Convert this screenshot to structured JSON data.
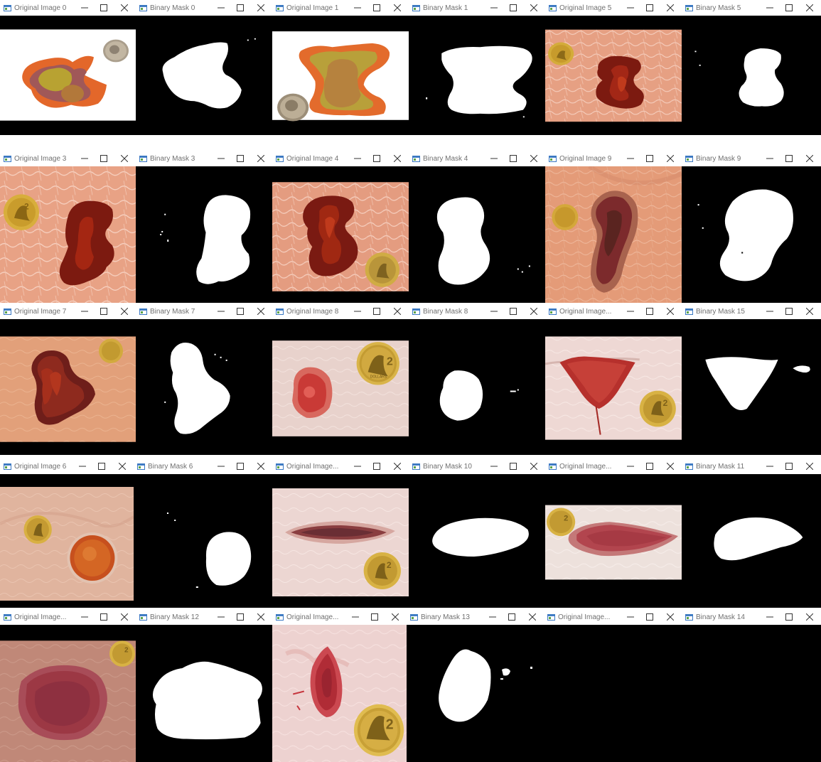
{
  "windows": [
    {
      "title": "Original Image 0",
      "kind": "original"
    },
    {
      "title": "Binary Mask 0",
      "kind": "mask"
    },
    {
      "title": "Original Image 1",
      "kind": "original"
    },
    {
      "title": "Binary Mask 1",
      "kind": "mask"
    },
    {
      "title": "Original Image 5",
      "kind": "original"
    },
    {
      "title": "Binary Mask 5",
      "kind": "mask"
    },
    {
      "title": "Original Image 3",
      "kind": "original"
    },
    {
      "title": "Binary Mask 3",
      "kind": "mask"
    },
    {
      "title": "Original Image 4",
      "kind": "original"
    },
    {
      "title": "Binary Mask 4",
      "kind": "mask"
    },
    {
      "title": "Original Image 9",
      "kind": "original"
    },
    {
      "title": "Binary Mask 9",
      "kind": "mask"
    },
    {
      "title": "Original Image 7",
      "kind": "original"
    },
    {
      "title": "Binary Mask 7",
      "kind": "mask"
    },
    {
      "title": "Original Image 8",
      "kind": "original"
    },
    {
      "title": "Binary Mask 8",
      "kind": "mask"
    },
    {
      "title": "Original Image...",
      "kind": "original"
    },
    {
      "title": "Binary Mask 15",
      "kind": "mask"
    },
    {
      "title": "Original Image 6",
      "kind": "original"
    },
    {
      "title": "Binary Mask 6",
      "kind": "mask"
    },
    {
      "title": "Original Image...",
      "kind": "original"
    },
    {
      "title": "Binary Mask 10",
      "kind": "mask"
    },
    {
      "title": "Original Image...",
      "kind": "original"
    },
    {
      "title": "Binary Mask 11",
      "kind": "mask"
    },
    {
      "title": "Original Image...",
      "kind": "original"
    },
    {
      "title": "Binary Mask 12",
      "kind": "mask"
    },
    {
      "title": "Original Image...",
      "kind": "original"
    },
    {
      "title": "Binary Mask 13",
      "kind": "mask"
    },
    {
      "title": "Original Image...",
      "kind": "original"
    },
    {
      "title": "Binary Mask 14",
      "kind": "mask"
    }
  ],
  "coin_text": "2",
  "coin_word": "DOLLARS",
  "colors": {
    "titlebar": "#ffffff",
    "title_text": "#707070",
    "mask_bg": "#000000",
    "mask_fg": "#ffffff",
    "skin": "#e8a07f",
    "wound_dark": "#6e1a12",
    "coin_gold": "#d4ac3a"
  },
  "icons": {
    "window": "app-window-icon",
    "minimize": "minimize-icon",
    "maximize": "maximize-icon",
    "close": "close-icon"
  }
}
